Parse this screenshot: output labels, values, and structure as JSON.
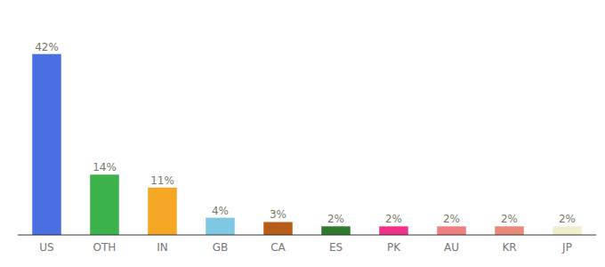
{
  "chart_data": {
    "type": "bar",
    "categories": [
      "US",
      "OTH",
      "IN",
      "GB",
      "CA",
      "ES",
      "PK",
      "AU",
      "KR",
      "JP"
    ],
    "values": [
      42,
      14,
      11,
      4,
      3,
      2,
      2,
      2,
      2,
      2
    ],
    "value_labels": [
      "42%",
      "14%",
      "11%",
      "4%",
      "3%",
      "2%",
      "2%",
      "2%",
      "2%",
      "2%"
    ],
    "colors": [
      "#4a6fe3",
      "#3bb34a",
      "#f5a623",
      "#7ec8e3",
      "#b85c1a",
      "#2d7a2d",
      "#f0308a",
      "#f08080",
      "#e8897a",
      "#f0eecc"
    ],
    "ylim": [
      0,
      50
    ],
    "data_labels": true,
    "tick_labels": "x"
  }
}
